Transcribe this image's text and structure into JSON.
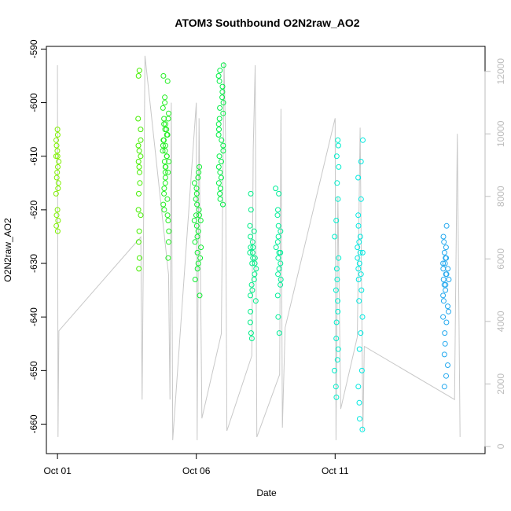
{
  "chart_data": {
    "type": "scatter",
    "title": "ATOM3 Southbound O2N2raw_AO2",
    "xlabel": "Date",
    "ylabel": "O2N2raw_AO2",
    "x_ticks": [
      {
        "day": 1,
        "label": "Oct 01"
      },
      {
        "day": 6,
        "label": "Oct 06"
      },
      {
        "day": 11,
        "label": "Oct 11"
      }
    ],
    "xlim": [
      0.6,
      16.4
    ],
    "ylim": [
      -665.5,
      -589.5
    ],
    "y_ticks": [
      -660,
      -650,
      -640,
      -630,
      -620,
      -610,
      -600,
      -590
    ],
    "y2lim": [
      -230,
      12800
    ],
    "y2_ticks": [
      0,
      2000,
      4000,
      6000,
      8000,
      10000,
      12000
    ],
    "line_color": "#c8c8c8",
    "trace_line": [
      [
        1.0,
        12200
      ],
      [
        1.02,
        300
      ],
      [
        1.05,
        3700
      ],
      [
        4.0,
        6700
      ],
      [
        4.05,
        1500
      ],
      [
        4.15,
        12500
      ],
      [
        5.0,
        5500
      ],
      [
        5.05,
        1500
      ],
      [
        5.1,
        11000
      ],
      [
        5.15,
        200
      ],
      [
        6.0,
        11000
      ],
      [
        6.03,
        200
      ],
      [
        6.1,
        10500
      ],
      [
        6.2,
        900
      ],
      [
        6.9,
        3600
      ],
      [
        7.0,
        12300
      ],
      [
        7.05,
        10000
      ],
      [
        7.1,
        500
      ],
      [
        8.0,
        2900
      ],
      [
        8.05,
        9500
      ],
      [
        8.12,
        12200
      ],
      [
        8.18,
        300
      ],
      [
        9.0,
        2300
      ],
      [
        9.05,
        10800
      ],
      [
        9.1,
        600
      ],
      [
        9.2,
        3800
      ],
      [
        11.0,
        10500
      ],
      [
        11.03,
        200
      ],
      [
        11.1,
        8000
      ],
      [
        11.2,
        1200
      ],
      [
        11.8,
        3500
      ],
      [
        11.9,
        10200
      ],
      [
        12.0,
        500
      ],
      [
        12.05,
        3200
      ],
      [
        15.3,
        1500
      ],
      [
        15.4,
        10000
      ],
      [
        15.5,
        300
      ]
    ],
    "series": [
      {
        "name": "",
        "color": "#7ff000",
        "x_center": 1.0,
        "x_spread": 0.06,
        "y_values": [
          -605,
          -606,
          -607,
          -608,
          -609,
          -610,
          -610,
          -611,
          -612,
          -613,
          -614,
          -615,
          -616,
          -617,
          -620,
          -621,
          -622,
          -623,
          -624
        ]
      },
      {
        "name": "",
        "color": "#44ee00",
        "x_center": 3.95,
        "x_spread": 0.05,
        "y_values": [
          -594,
          -595,
          -603,
          -605,
          -607,
          -608,
          -609,
          -610,
          -611,
          -612,
          -613,
          -615,
          -617,
          -620,
          -621,
          -624,
          -626,
          -629,
          -631
        ]
      },
      {
        "name": "",
        "color": "#22ee22",
        "x_center": 4.9,
        "x_spread": 0.12,
        "y_values": [
          -595,
          -596,
          -599,
          -600,
          -601,
          -602,
          -603,
          -603,
          -604,
          -604,
          -605,
          -605,
          -606,
          -606,
          -607,
          -607,
          -608,
          -608,
          -609,
          -609,
          -610,
          -610,
          -611,
          -611,
          -612,
          -612,
          -613,
          -613,
          -614,
          -615,
          -616,
          -617,
          -618,
          -619,
          -620,
          -621,
          -622,
          -624,
          -626,
          -629
        ]
      },
      {
        "name": "",
        "color": "#11ee33",
        "x_center": 6.05,
        "x_spread": 0.12,
        "y_values": [
          -612,
          -613,
          -614,
          -615,
          -616,
          -617,
          -618,
          -619,
          -620,
          -621,
          -621,
          -622,
          -622,
          -623,
          -624,
          -625,
          -626,
          -627,
          -628,
          -629,
          -630,
          -631,
          -633,
          -636
        ]
      },
      {
        "name": "",
        "color": "#00ee44",
        "x_center": 6.9,
        "x_spread": 0.1,
        "y_values": [
          -593,
          -594,
          -595,
          -596,
          -597,
          -598,
          -599,
          -600,
          -601,
          -602,
          -603,
          -604,
          -605,
          -606,
          -607,
          -608,
          -609,
          -610,
          -611,
          -612,
          -613,
          -614,
          -615,
          -616,
          -617,
          -618,
          -619
        ]
      },
      {
        "name": "",
        "color": "#00ee88",
        "x_center": 8.05,
        "x_spread": 0.12,
        "y_values": [
          -617,
          -620,
          -623,
          -624,
          -625,
          -626,
          -627,
          -627,
          -628,
          -628,
          -629,
          -629,
          -630,
          -630,
          -631,
          -632,
          -633,
          -634,
          -635,
          -636,
          -637,
          -639,
          -641,
          -643,
          -644
        ]
      },
      {
        "name": "",
        "color": "#00ee99",
        "x_center": 8.95,
        "x_spread": 0.1,
        "y_values": [
          -616,
          -617,
          -620,
          -621,
          -623,
          -624,
          -625,
          -626,
          -627,
          -628,
          -628,
          -629,
          -630,
          -631,
          -632,
          -633,
          -634,
          -636,
          -640,
          -643
        ]
      },
      {
        "name": "",
        "color": "#00eecc",
        "x_center": 11.05,
        "x_spread": 0.08,
        "y_values": [
          -607,
          -608,
          -610,
          -612,
          -615,
          -618,
          -622,
          -625,
          -629,
          -631,
          -633,
          -635,
          -637,
          -639,
          -641,
          -644,
          -646,
          -648,
          -650,
          -653,
          -655
        ]
      },
      {
        "name": "",
        "color": "#00e8e0",
        "x_center": 11.9,
        "x_spread": 0.1,
        "y_values": [
          -607,
          -611,
          -614,
          -618,
          -621,
          -623,
          -625,
          -626,
          -627,
          -628,
          -628,
          -629,
          -630,
          -631,
          -632,
          -633,
          -635,
          -637,
          -640,
          -643,
          -646,
          -650,
          -653,
          -656,
          -659,
          -661
        ]
      },
      {
        "name": "",
        "color": "#22a8ee",
        "x_center": 15.0,
        "x_spread": 0.12,
        "y_values": [
          -623,
          -625,
          -626,
          -627,
          -628,
          -629,
          -629,
          -630,
          -630,
          -631,
          -631,
          -632,
          -632,
          -633,
          -633,
          -634,
          -634,
          -635,
          -636,
          -637,
          -638,
          -639,
          -640,
          -641,
          -643,
          -645,
          -647,
          -649,
          -651,
          -653
        ]
      }
    ]
  }
}
